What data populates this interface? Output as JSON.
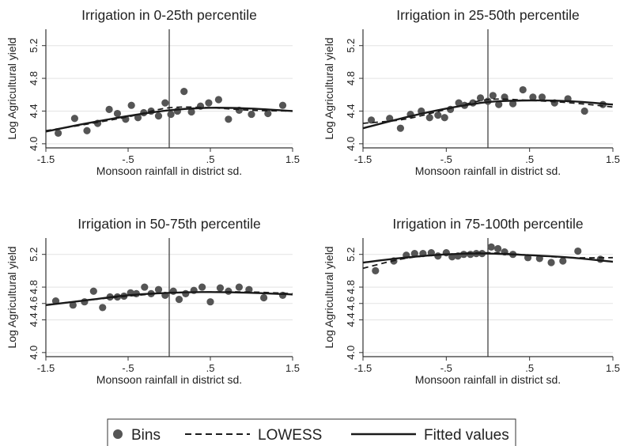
{
  "chart_data": [
    {
      "type": "scatter",
      "title": "Irrigation in 0-25th percentile",
      "xlabel": "Monsoon rainfall in district sd.",
      "ylabel": "Log Agricultural yield",
      "xlim": [
        -1.5,
        1.5
      ],
      "ylim": [
        3.95,
        5.4
      ],
      "xticks": [
        -1.5,
        -0.5,
        0.5,
        1.5
      ],
      "xtick_labels": [
        "-1.5",
        "-.5",
        ".5",
        "1.5"
      ],
      "yticks": [
        4.0,
        4.4,
        4.8,
        5.2
      ],
      "ytick_labels": [
        "4.0",
        "4.4",
        "4.8",
        "5.2"
      ],
      "vline_x": 0,
      "series": [
        {
          "name": "Bins",
          "kind": "points",
          "x": [
            -1.35,
            -1.15,
            -1.0,
            -0.87,
            -0.73,
            -0.63,
            -0.53,
            -0.46,
            -0.38,
            -0.31,
            -0.22,
            -0.13,
            -0.05,
            0.02,
            0.1,
            0.18,
            0.27,
            0.38,
            0.48,
            0.6,
            0.72,
            0.85,
            1.0,
            1.2,
            1.38
          ],
          "y": [
            4.13,
            4.31,
            4.16,
            4.25,
            4.42,
            4.37,
            4.3,
            4.47,
            4.32,
            4.38,
            4.4,
            4.34,
            4.5,
            4.36,
            4.4,
            4.64,
            4.39,
            4.46,
            4.5,
            4.54,
            4.3,
            4.41,
            4.36,
            4.37,
            4.47
          ]
        },
        {
          "name": "LOWESS",
          "kind": "dashed",
          "x": [
            -1.5,
            -1.0,
            -0.5,
            0.0,
            0.5,
            1.0,
            1.5
          ],
          "y": [
            4.16,
            4.24,
            4.33,
            4.44,
            4.44,
            4.41,
            4.4
          ]
        },
        {
          "name": "Fitted values",
          "kind": "solid",
          "x": [
            -1.5,
            -1.0,
            -0.5,
            0.0,
            0.5,
            1.0,
            1.5
          ],
          "y": [
            4.15,
            4.25,
            4.34,
            4.41,
            4.44,
            4.43,
            4.4
          ]
        }
      ]
    },
    {
      "type": "scatter",
      "title": "Irrigation in 25-50th percentile",
      "xlabel": "Monsoon rainfall in district sd.",
      "ylabel": "Log Agricultural yield",
      "xlim": [
        -1.5,
        1.5
      ],
      "ylim": [
        3.95,
        5.4
      ],
      "xticks": [
        -1.5,
        -0.5,
        0.5,
        1.5
      ],
      "xtick_labels": [
        "-1.5",
        "-.5",
        ".5",
        "1.5"
      ],
      "yticks": [
        4.0,
        4.4,
        4.8,
        5.2
      ],
      "ytick_labels": [
        "4.0",
        "4.4",
        "4.8",
        "5.2"
      ],
      "vline_x": 0,
      "series": [
        {
          "name": "Bins",
          "kind": "points",
          "x": [
            -1.4,
            -1.18,
            -1.05,
            -0.93,
            -0.8,
            -0.7,
            -0.6,
            -0.52,
            -0.45,
            -0.35,
            -0.28,
            -0.18,
            -0.09,
            0.0,
            0.06,
            0.13,
            0.2,
            0.3,
            0.42,
            0.54,
            0.65,
            0.8,
            0.96,
            1.16,
            1.38
          ],
          "y": [
            4.29,
            4.31,
            4.19,
            4.36,
            4.4,
            4.32,
            4.35,
            4.32,
            4.42,
            4.5,
            4.47,
            4.5,
            4.56,
            4.52,
            4.59,
            4.48,
            4.57,
            4.49,
            4.66,
            4.57,
            4.57,
            4.5,
            4.55,
            4.4,
            4.48
          ]
        },
        {
          "name": "LOWESS",
          "kind": "dashed",
          "x": [
            -1.5,
            -1.0,
            -0.5,
            0.0,
            0.5,
            1.0,
            1.5
          ],
          "y": [
            4.25,
            4.3,
            4.42,
            4.54,
            4.53,
            4.5,
            4.45
          ]
        },
        {
          "name": "Fitted values",
          "kind": "solid",
          "x": [
            -1.5,
            -1.0,
            -0.5,
            0.0,
            0.5,
            1.0,
            1.5
          ],
          "y": [
            4.19,
            4.32,
            4.43,
            4.51,
            4.53,
            4.52,
            4.48
          ]
        }
      ]
    },
    {
      "type": "scatter",
      "title": "Irrigation in 50-75th percentile",
      "xlabel": "Monsoon rainfall in district sd.",
      "ylabel": "Log Agricultural yield",
      "xlim": [
        -1.5,
        1.5
      ],
      "ylim": [
        3.95,
        5.4
      ],
      "xticks": [
        -1.5,
        -0.5,
        0.5,
        1.5
      ],
      "xtick_labels": [
        "-1.5",
        "-.5",
        ".5",
        "1.5"
      ],
      "yticks": [
        4.0,
        4.4,
        4.6,
        4.8,
        5.2
      ],
      "ytick_labels": [
        "4.0",
        "4.4",
        "4.6",
        "4.8",
        "5.2"
      ],
      "vline_x": 0,
      "series": [
        {
          "name": "Bins",
          "kind": "points",
          "x": [
            -1.38,
            -1.17,
            -1.03,
            -0.92,
            -0.81,
            -0.72,
            -0.63,
            -0.55,
            -0.47,
            -0.4,
            -0.3,
            -0.22,
            -0.13,
            -0.05,
            0.05,
            0.12,
            0.2,
            0.3,
            0.4,
            0.5,
            0.62,
            0.72,
            0.85,
            0.97,
            1.15,
            1.38
          ],
          "y": [
            4.63,
            4.58,
            4.62,
            4.75,
            4.55,
            4.68,
            4.68,
            4.69,
            4.73,
            4.72,
            4.8,
            4.72,
            4.77,
            4.7,
            4.75,
            4.65,
            4.72,
            4.76,
            4.8,
            4.62,
            4.79,
            4.75,
            4.8,
            4.77,
            4.67,
            4.7
          ]
        },
        {
          "name": "LOWESS",
          "kind": "dashed",
          "x": [
            -1.5,
            -1.0,
            -0.5,
            0.0,
            0.5,
            1.0,
            1.5
          ],
          "y": [
            4.58,
            4.64,
            4.69,
            4.73,
            4.74,
            4.74,
            4.72
          ]
        },
        {
          "name": "Fitted values",
          "kind": "solid",
          "x": [
            -1.5,
            -1.0,
            -0.5,
            0.0,
            0.5,
            1.0,
            1.5
          ],
          "y": [
            4.58,
            4.64,
            4.7,
            4.73,
            4.74,
            4.73,
            4.71
          ]
        }
      ]
    },
    {
      "type": "scatter",
      "title": "Irrigation in 75-100th percentile",
      "xlabel": "Monsoon rainfall in district sd.",
      "ylabel": "Log Agricultural yield",
      "xlim": [
        -1.5,
        1.5
      ],
      "ylim": [
        3.95,
        5.4
      ],
      "xticks": [
        -1.5,
        -0.5,
        0.5,
        1.5
      ],
      "xtick_labels": [
        "-1.5",
        "-.5",
        ".5",
        "1.5"
      ],
      "yticks": [
        4.0,
        4.4,
        4.6,
        4.8,
        5.2
      ],
      "ytick_labels": [
        "4.0",
        "4.4",
        "4.6",
        "4.8",
        "5.2"
      ],
      "vline_x": 0,
      "series": [
        {
          "name": "Bins",
          "kind": "points",
          "x": [
            -1.35,
            -1.13,
            -0.98,
            -0.88,
            -0.78,
            -0.68,
            -0.6,
            -0.5,
            -0.43,
            -0.36,
            -0.29,
            -0.21,
            -0.14,
            -0.07,
            0.04,
            0.12,
            0.2,
            0.3,
            0.48,
            0.62,
            0.76,
            0.9,
            1.08,
            1.35
          ],
          "y": [
            5.0,
            5.12,
            5.19,
            5.21,
            5.21,
            5.22,
            5.18,
            5.22,
            5.17,
            5.18,
            5.2,
            5.2,
            5.21,
            5.21,
            5.29,
            5.27,
            5.23,
            5.2,
            5.16,
            5.15,
            5.1,
            5.12,
            5.24,
            5.14
          ]
        },
        {
          "name": "LOWESS",
          "kind": "dashed",
          "x": [
            -1.5,
            -1.0,
            -0.5,
            0.0,
            0.5,
            1.0,
            1.5
          ],
          "y": [
            5.03,
            5.15,
            5.2,
            5.22,
            5.19,
            5.16,
            5.16
          ]
        },
        {
          "name": "Fitted values",
          "kind": "solid",
          "x": [
            -1.5,
            -1.0,
            -0.5,
            0.0,
            0.5,
            1.0,
            1.5
          ],
          "y": [
            5.1,
            5.16,
            5.2,
            5.21,
            5.19,
            5.16,
            5.11
          ]
        }
      ]
    }
  ],
  "legend": {
    "items": [
      {
        "label": "Bins",
        "kind": "points"
      },
      {
        "label": "LOWESS",
        "kind": "dashed"
      },
      {
        "label": "Fitted values",
        "kind": "solid"
      }
    ]
  },
  "colors": {
    "points": "#555555",
    "lines": "#1a1a1a",
    "axis": "#333333",
    "vline": "#333333"
  }
}
